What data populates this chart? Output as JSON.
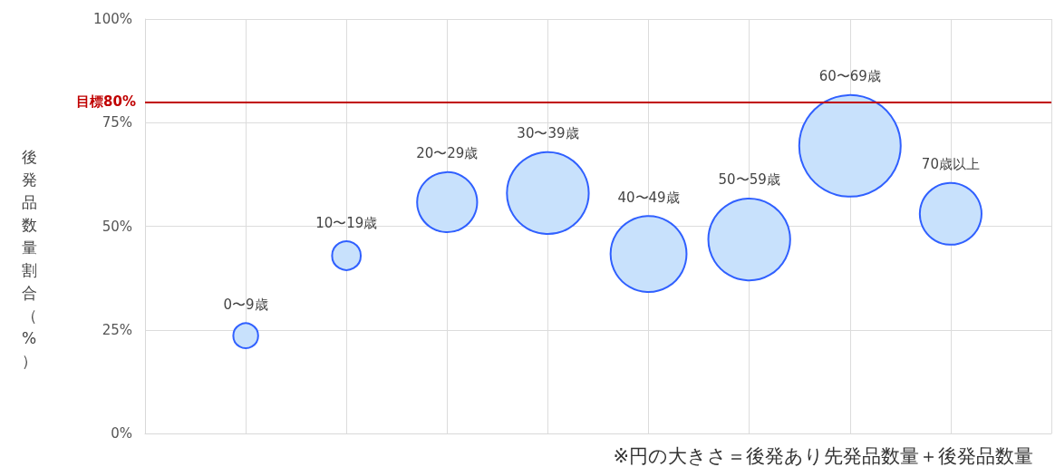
{
  "chart_data": {
    "type": "bubble",
    "ylabel": "後発品数量割合（%）",
    "categories": [
      "0〜9歳",
      "10〜19歳",
      "20〜29歳",
      "30〜39歳",
      "40〜49歳",
      "50〜59歳",
      "60〜69歳",
      "70歳以上"
    ],
    "values": [
      23.6,
      42.9,
      55.8,
      58.0,
      43.3,
      46.8,
      69.4,
      53.0
    ],
    "sizes": [
      0.06,
      0.08,
      0.35,
      0.65,
      0.56,
      0.65,
      1,
      0.37
    ],
    "color": "#c8e1fc",
    "ylim": [
      0,
      100
    ],
    "yticks": [
      {
        "value": 0,
        "label": "0%"
      },
      {
        "value": 25,
        "label": "25%"
      },
      {
        "value": 50,
        "label": "50%"
      },
      {
        "value": 75,
        "label": "75%"
      },
      {
        "value": 100,
        "label": "100%"
      }
    ],
    "ref_lines": [
      {
        "axis": "y",
        "value": 80,
        "label": "目標80%",
        "color": "#c00000"
      }
    ],
    "annotations": [
      "※円の大きさ＝後発あり先発品数量＋後発品数量"
    ],
    "grid": true,
    "tick_labels": "y",
    "data_labels": false
  }
}
